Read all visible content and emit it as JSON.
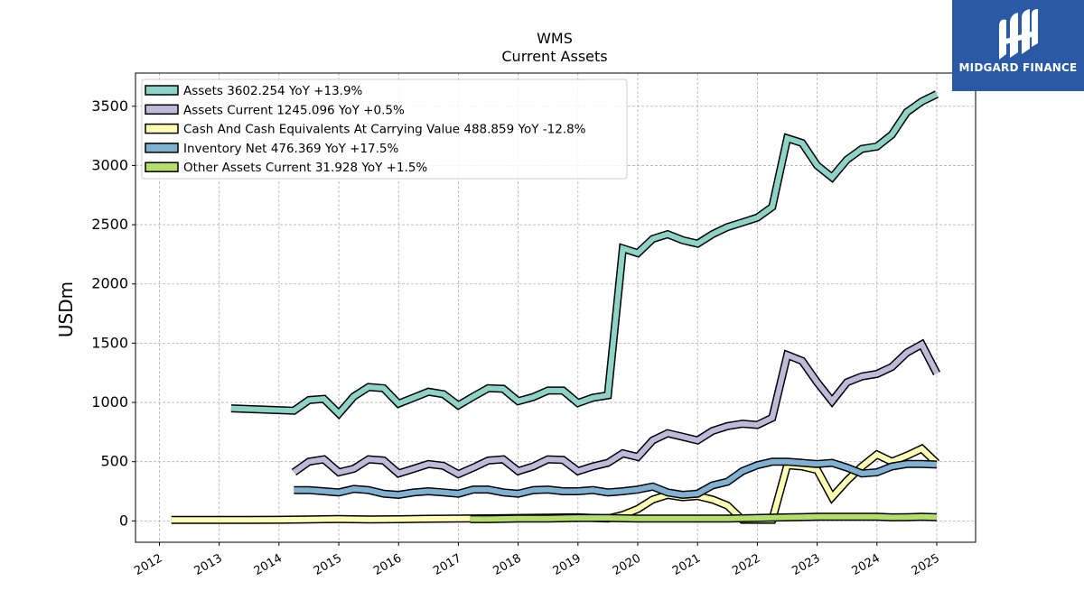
{
  "brand": {
    "name": "MIDGARD FINANCE",
    "logo_icon": "midgard-m-logo",
    "color": "#2a5aa6"
  },
  "chart_data": {
    "type": "line",
    "title": "WMS",
    "subtitle": "Current  Assets",
    "ylabel": "USDm",
    "xlabel": "",
    "xlim": [
      2011.6,
      2025.65
    ],
    "ylim": [
      -180,
      3780
    ],
    "yticks": [
      0,
      500,
      1000,
      1500,
      2000,
      2500,
      3000,
      3500
    ],
    "xticks": [
      "2012",
      "2013",
      "2014",
      "2015",
      "2016",
      "2017",
      "2018",
      "2019",
      "2020",
      "2021",
      "2022",
      "2023",
      "2024",
      "2025"
    ],
    "grid": true,
    "legend_position": "top-left",
    "series": [
      {
        "name": "Assets",
        "legend_label": "Assets  3602.254 YoY +13.9%",
        "color": "#8dd3c7",
        "x": [
          2013.2,
          2014.25,
          2014.5,
          2014.75,
          2015.0,
          2015.25,
          2015.5,
          2015.75,
          2016.0,
          2016.25,
          2016.5,
          2016.75,
          2017.0,
          2017.25,
          2017.5,
          2017.75,
          2018.0,
          2018.25,
          2018.5,
          2018.75,
          2019.0,
          2019.25,
          2019.5,
          2019.75,
          2020.0,
          2020.25,
          2020.5,
          2020.75,
          2021.0,
          2021.25,
          2021.5,
          2021.75,
          2022.0,
          2022.25,
          2022.5,
          2022.75,
          2023.0,
          2023.25,
          2023.5,
          2023.75,
          2024.0,
          2024.25,
          2024.5,
          2024.75,
          2025.0
        ],
        "y": [
          950,
          930,
          1020,
          1030,
          905,
          1050,
          1130,
          1120,
          990,
          1040,
          1090,
          1070,
          975,
          1050,
          1120,
          1115,
          1010,
          1045,
          1100,
          1100,
          995,
          1040,
          1060,
          2300,
          2260,
          2380,
          2420,
          2370,
          2340,
          2420,
          2480,
          2520,
          2560,
          2650,
          3230,
          3190,
          3000,
          2900,
          3050,
          3140,
          3160,
          3260,
          3450,
          3540,
          3602
        ]
      },
      {
        "name": "Assets Current",
        "legend_label": "Assets Current  1245.096 YoY +0.5%",
        "color": "#bebada",
        "x": [
          2014.25,
          2014.5,
          2014.75,
          2015.0,
          2015.25,
          2015.5,
          2015.75,
          2016.0,
          2016.25,
          2016.5,
          2016.75,
          2017.0,
          2017.25,
          2017.5,
          2017.75,
          2018.0,
          2018.25,
          2018.5,
          2018.75,
          2019.0,
          2019.25,
          2019.5,
          2019.75,
          2020.0,
          2020.25,
          2020.5,
          2020.75,
          2021.0,
          2021.25,
          2021.5,
          2021.75,
          2022.0,
          2022.25,
          2022.5,
          2022.75,
          2023.0,
          2023.25,
          2023.5,
          2023.75,
          2024.0,
          2024.25,
          2024.5,
          2024.75,
          2025.0
        ],
        "y": [
          410,
          500,
          520,
          410,
          440,
          520,
          510,
          400,
          440,
          480,
          465,
          395,
          450,
          510,
          520,
          420,
          460,
          520,
          515,
          420,
          460,
          490,
          570,
          540,
          680,
          740,
          710,
          680,
          760,
          800,
          820,
          810,
          870,
          1400,
          1350,
          1170,
          1010,
          1170,
          1220,
          1240,
          1300,
          1420,
          1490,
          1245
        ]
      },
      {
        "name": "Cash And Cash Equivalents At Carrying Value",
        "legend_label": "Cash And Cash Equivalents At Carrying Value  488.859 YoY -12.8%",
        "color": "#ffffb3",
        "x": [
          2012.2,
          2013.0,
          2013.5,
          2014.0,
          2014.5,
          2015.0,
          2015.5,
          2016.0,
          2016.5,
          2017.0,
          2017.5,
          2018.0,
          2018.5,
          2019.0,
          2019.5,
          2019.75,
          2020.0,
          2020.25,
          2020.5,
          2020.75,
          2021.0,
          2021.25,
          2021.5,
          2021.75,
          2022.0,
          2022.25,
          2022.5,
          2022.75,
          2023.0,
          2023.25,
          2023.5,
          2023.75,
          2024.0,
          2024.25,
          2024.5,
          2024.75,
          2025.0
        ],
        "y": [
          8,
          8,
          8,
          10,
          12,
          16,
          12,
          14,
          18,
          20,
          22,
          25,
          28,
          30,
          20,
          50,
          100,
          180,
          220,
          200,
          210,
          180,
          130,
          10,
          10,
          10,
          470,
          460,
          430,
          200,
          340,
          460,
          560,
          500,
          550,
          610,
          489
        ]
      },
      {
        "name": "Inventory Net",
        "legend_label": "Inventory Net  476.369 YoY +17.5%",
        "color": "#80b1d3",
        "x": [
          2014.25,
          2014.5,
          2014.75,
          2015.0,
          2015.25,
          2015.5,
          2015.75,
          2016.0,
          2016.25,
          2016.5,
          2016.75,
          2017.0,
          2017.25,
          2017.5,
          2017.75,
          2018.0,
          2018.25,
          2018.5,
          2018.75,
          2019.0,
          2019.25,
          2019.5,
          2019.75,
          2020.0,
          2020.25,
          2020.5,
          2020.75,
          2021.0,
          2021.25,
          2021.5,
          2021.75,
          2022.0,
          2022.25,
          2022.5,
          2022.75,
          2023.0,
          2023.25,
          2023.5,
          2023.75,
          2024.0,
          2024.25,
          2024.5,
          2024.75,
          2025.0
        ],
        "y": [
          260,
          260,
          250,
          240,
          270,
          260,
          230,
          220,
          240,
          250,
          240,
          230,
          265,
          265,
          240,
          230,
          260,
          265,
          250,
          250,
          260,
          240,
          250,
          265,
          290,
          240,
          220,
          230,
          300,
          330,
          420,
          470,
          500,
          500,
          490,
          480,
          490,
          450,
          400,
          410,
          460,
          480,
          480,
          476
        ]
      },
      {
        "name": "Other Assets Current",
        "legend_label": "Other Assets Current  31.928 YoY +1.5%",
        "color": "#b3de69",
        "x": [
          2017.2,
          2017.5,
          2018.0,
          2018.5,
          2019.0,
          2019.5,
          2020.0,
          2020.5,
          2021.0,
          2021.5,
          2022.0,
          2022.5,
          2023.0,
          2023.5,
          2024.0,
          2024.25,
          2024.5,
          2024.75,
          2025.0
        ],
        "y": [
          15,
          15,
          20,
          20,
          25,
          25,
          20,
          20,
          20,
          20,
          25,
          30,
          35,
          35,
          35,
          30,
          32,
          35,
          32
        ]
      }
    ]
  }
}
